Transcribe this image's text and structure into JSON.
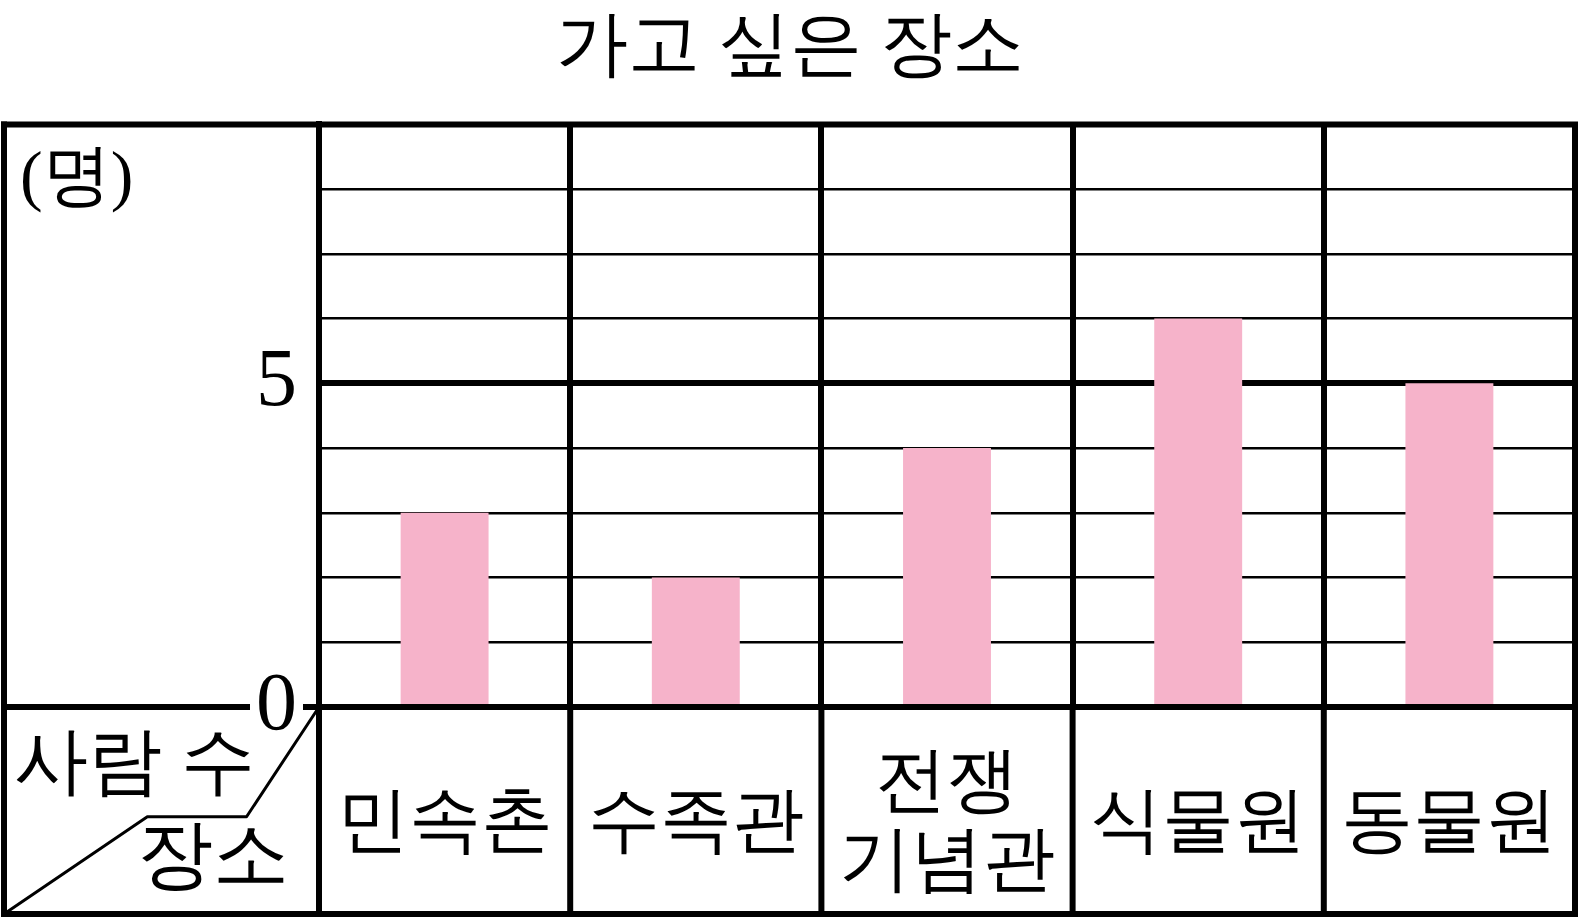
{
  "chart_data": {
    "type": "bar",
    "title": "가고 싶은 장소",
    "xlabel": "장소",
    "ylabel": "사람 수",
    "annotations": [
      "(명)"
    ],
    "categories": [
      "민속촌",
      "수족관",
      "전쟁 기념관",
      "식물원",
      "동물원"
    ],
    "values": [
      3,
      2,
      4,
      6,
      5
    ],
    "color": "#f6b3ca",
    "ylim": [
      0,
      9
    ],
    "yticks": [
      0,
      {
        "value": 1,
        "label": null
      },
      {
        "value": 2,
        "label": null
      },
      {
        "value": 3,
        "label": null
      },
      {
        "value": 4,
        "label": null
      },
      5,
      {
        "value": 6,
        "label": null
      },
      {
        "value": 7,
        "label": null
      },
      {
        "value": 8,
        "label": null
      }
    ],
    "grid": true
  }
}
